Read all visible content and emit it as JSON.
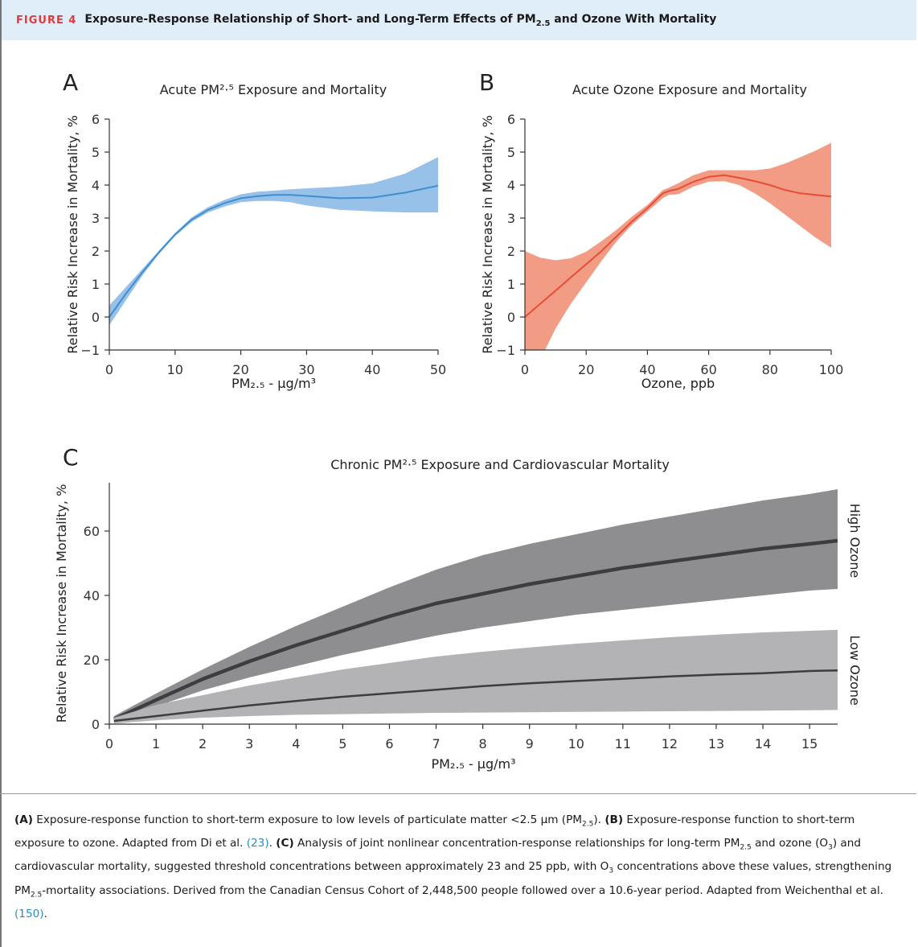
{
  "header": {
    "figure_label": "FIGURE 4",
    "title_before": "Exposure-Response Relationship of Short- and Long-Term Effects of PM",
    "title_sub": "2.5",
    "title_after": " and Ozone With Mortality"
  },
  "chart_data": [
    {
      "type": "line",
      "panel_label": "A",
      "title": "Acute PM²·⁵ Exposure and Mortality",
      "xlabel": "PM₂.₅ - μg/m³",
      "ylabel": "Relative Risk Increase in Mortality, %",
      "xlim": [
        0,
        50
      ],
      "ylim": [
        -1,
        6
      ],
      "xticks": [
        0,
        10,
        20,
        30,
        40,
        50
      ],
      "yticks": [
        -1,
        0,
        1,
        2,
        3,
        4,
        5,
        6
      ],
      "line_color": "#3f8fd0",
      "band_color": "#97c1e8",
      "x": [
        0,
        2.5,
        5,
        7.5,
        10,
        12.5,
        15,
        17.5,
        20,
        22.5,
        25,
        27.5,
        30,
        35,
        40,
        45,
        50
      ],
      "series": [
        {
          "y": [
            0.0,
            0.7,
            1.35,
            1.95,
            2.5,
            2.95,
            3.25,
            3.45,
            3.6,
            3.66,
            3.7,
            3.7,
            3.67,
            3.6,
            3.62,
            3.77,
            3.98
          ],
          "lower": [
            -0.25,
            0.5,
            1.25,
            1.9,
            2.45,
            2.88,
            3.17,
            3.35,
            3.48,
            3.52,
            3.52,
            3.48,
            3.38,
            3.25,
            3.2,
            3.17,
            3.17
          ],
          "upper": [
            0.35,
            0.9,
            1.45,
            2.0,
            2.55,
            3.02,
            3.33,
            3.55,
            3.72,
            3.8,
            3.83,
            3.87,
            3.9,
            3.95,
            4.05,
            4.35,
            4.85
          ]
        }
      ]
    },
    {
      "type": "line",
      "panel_label": "B",
      "title": "Acute Ozone Exposure and Mortality",
      "xlabel": "Ozone, ppb",
      "ylabel": "Relative Risk Increase in Mortality, %",
      "xlim": [
        0,
        100
      ],
      "ylim": [
        -1,
        6
      ],
      "xticks": [
        0,
        20,
        40,
        60,
        80,
        100
      ],
      "yticks": [
        -1,
        0,
        1,
        2,
        3,
        4,
        5,
        6
      ],
      "line_color": "#e64d35",
      "band_color": "#f29c86",
      "x": [
        0,
        5,
        10,
        15,
        20,
        25,
        30,
        35,
        40,
        45,
        47,
        50,
        55,
        60,
        65,
        70,
        75,
        80,
        85,
        90,
        95,
        100
      ],
      "series": [
        {
          "y": [
            0.0,
            0.4,
            0.8,
            1.2,
            1.6,
            2.0,
            2.45,
            2.9,
            3.3,
            3.75,
            3.82,
            3.88,
            4.1,
            4.25,
            4.3,
            4.22,
            4.12,
            4.0,
            3.85,
            3.75,
            3.7,
            3.65
          ],
          "lower": [
            -1.0,
            -1.3,
            -0.35,
            0.4,
            1.05,
            1.7,
            2.3,
            2.8,
            3.2,
            3.6,
            3.7,
            3.72,
            3.95,
            4.1,
            4.12,
            4.0,
            3.75,
            3.45,
            3.1,
            2.75,
            2.4,
            2.1
          ],
          "upper": [
            2.0,
            1.8,
            1.72,
            1.78,
            1.98,
            2.3,
            2.65,
            3.05,
            3.4,
            3.85,
            3.92,
            4.05,
            4.3,
            4.45,
            4.45,
            4.45,
            4.45,
            4.5,
            4.65,
            4.85,
            5.05,
            5.28
          ]
        }
      ]
    },
    {
      "type": "line",
      "panel_label": "C",
      "title": "Chronic PM²·⁵ Exposure and Cardiovascular Mortality",
      "xlabel": "PM₂.₅ - μg/m³",
      "ylabel": "Relative Risk Increase in Mortality, %",
      "xlim": [
        0,
        15.6
      ],
      "ylim": [
        0,
        75
      ],
      "xticks": [
        0,
        1,
        2,
        3,
        4,
        5,
        6,
        7,
        8,
        9,
        10,
        11,
        12,
        13,
        14,
        15
      ],
      "yticks": [
        0,
        20,
        40,
        60
      ],
      "x": [
        0.1,
        1,
        2,
        3,
        4,
        5,
        6,
        7,
        8,
        9,
        10,
        11,
        12,
        13,
        14,
        15,
        15.6
      ],
      "series": [
        {
          "name": "High Ozone",
          "line_color": "#3d3d3f",
          "band_color": "#8e8e91",
          "y": [
            1.5,
            7.5,
            14,
            19.5,
            24.5,
            29,
            33.5,
            37.5,
            40.5,
            43.5,
            46,
            48.5,
            50.5,
            52.5,
            54.5,
            56,
            57
          ],
          "lower": [
            0.5,
            5.5,
            10.5,
            14.5,
            18,
            21.5,
            24.5,
            27.5,
            30,
            32,
            34,
            35.5,
            37,
            38.5,
            40,
            41.5,
            42
          ],
          "upper": [
            2.5,
            9.5,
            17,
            24,
            30.5,
            36.5,
            42.5,
            48,
            52.5,
            56,
            59,
            62,
            64.5,
            67,
            69.5,
            71.5,
            73
          ]
        },
        {
          "name": "Low Ozone",
          "line_color": "#3d3d3f",
          "band_color": "#b3b3b6",
          "y": [
            1.0,
            2.5,
            4.2,
            5.8,
            7.2,
            8.5,
            9.6,
            10.7,
            11.8,
            12.7,
            13.4,
            14.1,
            14.8,
            15.4,
            15.8,
            16.5,
            16.7
          ],
          "lower": [
            0.2,
            1.2,
            2.0,
            2.5,
            2.9,
            3.1,
            3.3,
            3.5,
            3.6,
            3.7,
            3.8,
            3.9,
            4.0,
            4.1,
            4.2,
            4.3,
            4.4
          ],
          "upper": [
            2.0,
            6.0,
            9.0,
            12.0,
            14.5,
            17.0,
            19.0,
            21.0,
            22.5,
            23.8,
            25.0,
            26.0,
            27.0,
            27.8,
            28.5,
            29.0,
            29.3
          ]
        }
      ]
    }
  ],
  "caption": {
    "a_label": "(A)",
    "a_text_1": " Exposure-response function to short-term exposure to low levels of particulate matter <2.5 μm (PM",
    "a_sub": "2.5",
    "a_text_2": "). ",
    "b_label": "(B)",
    "b_text_1": " Exposure-response function to short-term exposure to ozone. Adapted from Di et al. ",
    "b_ref": "(23)",
    "b_text_2": ". ",
    "c_label": "(C)",
    "c_text_1": " Analysis of joint nonlinear concentration-response relationships for long-term PM",
    "c_sub_1": "2.5",
    "c_text_2": " and ozone (O",
    "c_sub_2": "3",
    "c_text_3": ") and cardiovascular mortality, suggested threshold concentrations between approximately 23 and 25 ppb, with O",
    "c_sub_3": "3",
    "c_text_4": " concentrations above these values, strengthening PM",
    "c_sub_4": "2.5",
    "c_text_5": "-mortality associations. Derived from the Canadian Census Cohort of 2,448,500 people followed over a 10.6-year period. Adapted from Weichenthal et al. ",
    "c_ref": "(150)",
    "c_text_6": "."
  }
}
